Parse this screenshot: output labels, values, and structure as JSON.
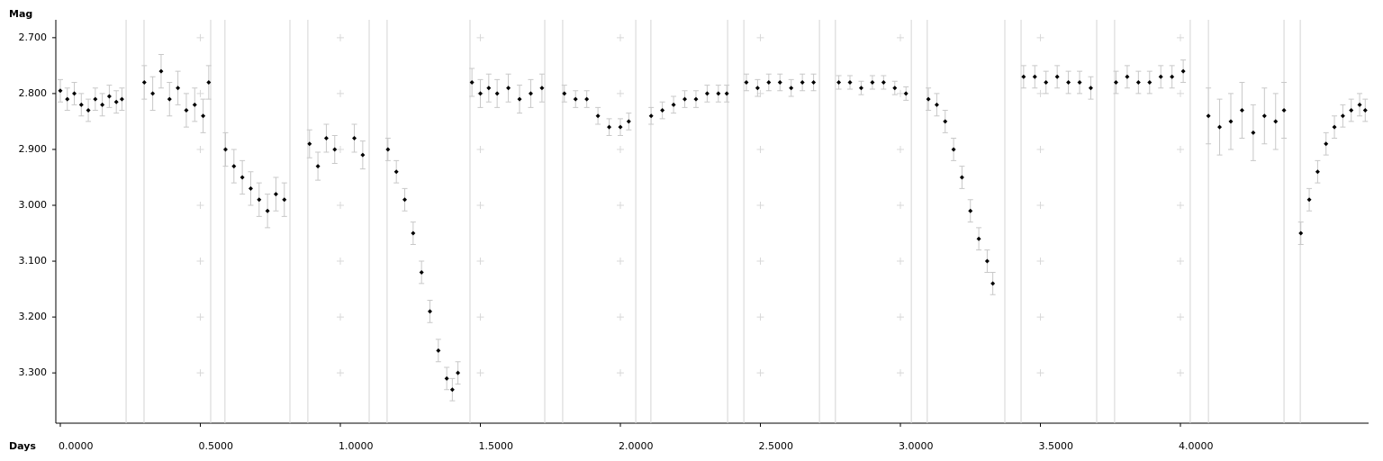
{
  "chart_data": {
    "type": "scatter",
    "y_label": "Mag",
    "x_label": "Days",
    "y_inverted": true,
    "xlim": [
      -0.016,
      4.672
    ],
    "ylim": [
      2.668,
      3.39
    ],
    "xticks": [
      {
        "value": 0,
        "label": "0.0000"
      },
      {
        "value": 0.5,
        "label": "0.5000"
      },
      {
        "value": 1,
        "label": "1.0000"
      },
      {
        "value": 1.5,
        "label": "1.5000"
      },
      {
        "value": 2,
        "label": "2.0000"
      },
      {
        "value": 2.5,
        "label": "2.5000"
      },
      {
        "value": 3,
        "label": "3.0000"
      },
      {
        "value": 3.5,
        "label": "3.5000"
      },
      {
        "value": 4,
        "label": "4.0000"
      }
    ],
    "yticks": [
      {
        "value": 2.7,
        "label": "2.700"
      },
      {
        "value": 2.8,
        "label": "2.800"
      },
      {
        "value": 2.9,
        "label": "2.900"
      },
      {
        "value": 3.0,
        "label": "3.000"
      },
      {
        "value": 3.1,
        "label": "3.100"
      },
      {
        "value": 3.2,
        "label": "3.200"
      },
      {
        "value": 3.3,
        "label": "3.300"
      }
    ],
    "grid": true,
    "segment_breaks": [
      0.235,
      0.299,
      0.537,
      0.588,
      0.82,
      0.884,
      1.103,
      1.167,
      1.463,
      1.73,
      1.794,
      2.055,
      2.109,
      2.383,
      2.441,
      2.711,
      2.768,
      3.039,
      3.096,
      3.373,
      3.431,
      3.701,
      3.765,
      4.035,
      4.1,
      4.37,
      4.428
    ],
    "color": "#000000",
    "error_color": "#c8c8c8",
    "x": [
      0.0,
      0.025,
      0.05,
      0.075,
      0.1,
      0.125,
      0.15,
      0.175,
      0.2,
      0.22,
      0.3,
      0.33,
      0.36,
      0.39,
      0.42,
      0.45,
      0.48,
      0.51,
      0.53,
      0.59,
      0.62,
      0.65,
      0.68,
      0.71,
      0.74,
      0.77,
      0.8,
      0.89,
      0.92,
      0.95,
      0.98,
      1.05,
      1.08,
      1.17,
      1.2,
      1.23,
      1.26,
      1.29,
      1.32,
      1.35,
      1.38,
      1.4,
      1.42,
      1.47,
      1.5,
      1.53,
      1.56,
      1.6,
      1.64,
      1.68,
      1.72,
      1.8,
      1.84,
      1.88,
      1.92,
      1.96,
      2.0,
      2.03,
      2.11,
      2.15,
      2.19,
      2.23,
      2.27,
      2.31,
      2.35,
      2.38,
      2.45,
      2.49,
      2.53,
      2.57,
      2.61,
      2.65,
      2.69,
      2.78,
      2.82,
      2.86,
      2.9,
      2.94,
      2.98,
      3.02,
      3.1,
      3.13,
      3.16,
      3.19,
      3.22,
      3.25,
      3.28,
      3.31,
      3.33,
      3.44,
      3.48,
      3.52,
      3.56,
      3.6,
      3.64,
      3.68,
      3.77,
      3.81,
      3.85,
      3.89,
      3.93,
      3.97,
      4.01,
      4.1,
      4.14,
      4.18,
      4.22,
      4.26,
      4.3,
      4.34,
      4.37,
      4.43,
      4.46,
      4.49,
      4.52,
      4.55,
      4.58,
      4.61,
      4.64,
      4.66
    ],
    "values": [
      2.795,
      2.81,
      2.8,
      2.82,
      2.83,
      2.81,
      2.82,
      2.805,
      2.815,
      2.81,
      2.78,
      2.8,
      2.76,
      2.81,
      2.79,
      2.83,
      2.82,
      2.84,
      2.78,
      2.9,
      2.93,
      2.95,
      2.97,
      2.99,
      3.01,
      2.98,
      2.99,
      2.89,
      2.93,
      2.88,
      2.9,
      2.88,
      2.91,
      2.9,
      2.94,
      2.99,
      3.05,
      3.12,
      3.19,
      3.26,
      3.31,
      3.33,
      3.3,
      2.78,
      2.8,
      2.79,
      2.8,
      2.79,
      2.81,
      2.8,
      2.79,
      2.8,
      2.81,
      2.81,
      2.84,
      2.86,
      2.86,
      2.85,
      2.84,
      2.83,
      2.82,
      2.81,
      2.81,
      2.8,
      2.8,
      2.8,
      2.78,
      2.79,
      2.78,
      2.78,
      2.79,
      2.78,
      2.78,
      2.78,
      2.78,
      2.79,
      2.78,
      2.78,
      2.79,
      2.8,
      2.81,
      2.82,
      2.85,
      2.9,
      2.95,
      3.01,
      3.06,
      3.1,
      3.14,
      2.77,
      2.77,
      2.78,
      2.77,
      2.78,
      2.78,
      2.79,
      2.78,
      2.77,
      2.78,
      2.78,
      2.77,
      2.77,
      2.76,
      2.84,
      2.86,
      2.85,
      2.83,
      2.87,
      2.84,
      2.85,
      2.83,
      3.05,
      2.99,
      2.94,
      2.89,
      2.86,
      2.84,
      2.83,
      2.82,
      2.83
    ],
    "errors": [
      0.02,
      0.02,
      0.02,
      0.02,
      0.02,
      0.02,
      0.02,
      0.02,
      0.02,
      0.02,
      0.03,
      0.03,
      0.03,
      0.03,
      0.03,
      0.03,
      0.03,
      0.03,
      0.03,
      0.03,
      0.03,
      0.03,
      0.03,
      0.03,
      0.03,
      0.03,
      0.03,
      0.025,
      0.025,
      0.025,
      0.025,
      0.025,
      0.025,
      0.02,
      0.02,
      0.02,
      0.02,
      0.02,
      0.02,
      0.02,
      0.02,
      0.02,
      0.02,
      0.025,
      0.025,
      0.025,
      0.025,
      0.025,
      0.025,
      0.025,
      0.025,
      0.015,
      0.015,
      0.015,
      0.015,
      0.015,
      0.015,
      0.015,
      0.015,
      0.015,
      0.015,
      0.015,
      0.015,
      0.015,
      0.015,
      0.015,
      0.015,
      0.015,
      0.015,
      0.015,
      0.015,
      0.015,
      0.015,
      0.012,
      0.012,
      0.012,
      0.012,
      0.012,
      0.012,
      0.012,
      0.02,
      0.02,
      0.02,
      0.02,
      0.02,
      0.02,
      0.02,
      0.02,
      0.02,
      0.02,
      0.02,
      0.02,
      0.02,
      0.02,
      0.02,
      0.02,
      0.02,
      0.02,
      0.02,
      0.02,
      0.02,
      0.02,
      0.02,
      0.05,
      0.05,
      0.05,
      0.05,
      0.05,
      0.05,
      0.05,
      0.05,
      0.02,
      0.02,
      0.02,
      0.02,
      0.02,
      0.02,
      0.02,
      0.02,
      0.02
    ]
  }
}
